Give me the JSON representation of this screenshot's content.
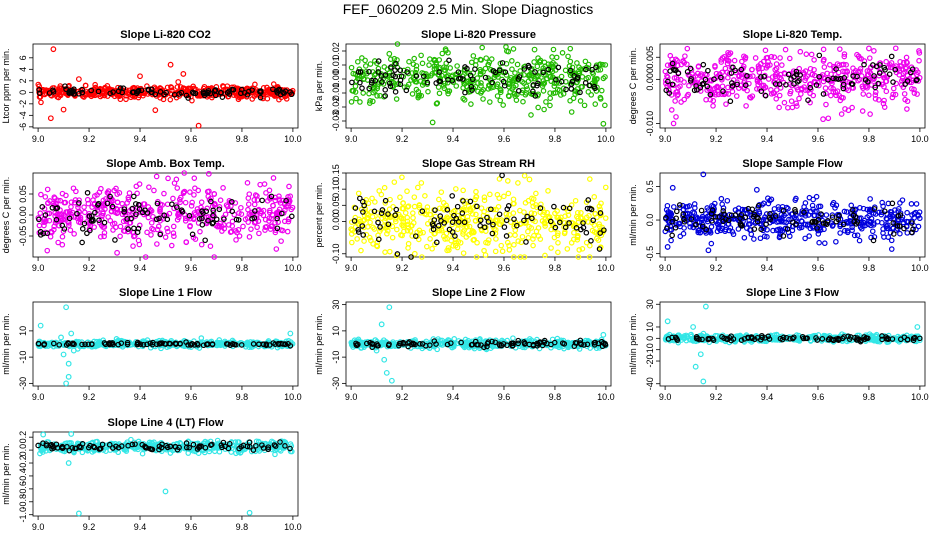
{
  "figure_title": "FEF_060209  2.5 Min. Slope Diagnostics",
  "chart_data": [
    {
      "id": "co2",
      "type": "scatter",
      "title": "Slope Li-820 CO2",
      "ylabel": "Ltcor ppm per min.",
      "color": "#ff0000",
      "xlim": [
        8.98,
        10.02
      ],
      "ylim": [
        -6.2,
        8.4
      ],
      "xticks": [
        "9.0",
        "9.2",
        "9.4",
        "9.6",
        "9.8",
        "10.0"
      ],
      "yticks": [
        "-6",
        "-4",
        "-2",
        "0",
        "2",
        "4",
        "6"
      ],
      "noise": 0.5,
      "spikes": [
        [
          9.06,
          7.5
        ],
        [
          9.52,
          4.8
        ],
        [
          9.57,
          3.2
        ],
        [
          9.63,
          -5.8
        ],
        [
          9.1,
          -3.0
        ],
        [
          9.4,
          2.8
        ],
        [
          9.05,
          -4.5
        ],
        [
          9.16,
          2.3
        ],
        [
          9.46,
          -3.1
        ],
        [
          9.55,
          1.8
        ]
      ],
      "black_noise": 0.35,
      "center": 0.0
    },
    {
      "id": "pressure",
      "type": "scatter",
      "title": "Slope Li-820 Pressure",
      "ylabel": "kPa per min.",
      "color": "#22bb00",
      "xlim": [
        8.98,
        10.02
      ],
      "ylim": [
        -0.035,
        0.025
      ],
      "xticks": [
        "9.0",
        "9.2",
        "9.4",
        "9.6",
        "9.8",
        "10.0"
      ],
      "yticks": [
        "-0.03",
        "-0.02",
        "-0.01",
        "0.00",
        "0.01",
        "0.02"
      ],
      "noise": 0.009,
      "spikes": [
        [
          9.32,
          -0.031
        ],
        [
          9.99,
          -0.032
        ],
        [
          9.15,
          0.018
        ],
        [
          9.72,
          0.021
        ]
      ],
      "black_noise": 0.006,
      "center": 0.0
    },
    {
      "id": "temp",
      "type": "scatter",
      "title": "Slope Li-820 Temp.",
      "ylabel": "degrees C per min.",
      "color": "#ee00ee",
      "xlim": [
        8.98,
        10.02
      ],
      "ylim": [
        -0.011,
        0.008
      ],
      "xticks": [
        "9.0",
        "9.2",
        "9.4",
        "9.6",
        "9.8",
        "10.0"
      ],
      "yticks": [
        "-0.010",
        "0.000",
        "0.005"
      ],
      "noise": 0.003,
      "spikes": [
        [
          9.62,
          -0.009
        ],
        [
          9.8,
          0.007
        ]
      ],
      "black_noise": 0.002,
      "center": 0.0
    },
    {
      "id": "ambbox",
      "type": "scatter",
      "title": "Slope Amb. Box Temp.",
      "ylabel": "degrees C per min.",
      "color": "#ee00ee",
      "xlim": [
        8.98,
        10.02
      ],
      "ylim": [
        -0.1,
        0.1
      ],
      "xticks": [
        "9.0",
        "9.2",
        "9.4",
        "9.6",
        "9.8",
        "10.0"
      ],
      "yticks": [
        "-0.05",
        "0.00",
        "0.05"
      ],
      "noise": 0.035,
      "spikes": [
        [
          9.67,
          0.098
        ],
        [
          9.31,
          -0.09
        ]
      ],
      "black_noise": 0.025,
      "center": 0.0
    },
    {
      "id": "rh",
      "type": "scatter",
      "title": "Slope Gas Stream RH",
      "ylabel": "percent per min.",
      "color": "#ffff00",
      "xlim": [
        8.98,
        10.02
      ],
      "ylim": [
        -0.11,
        0.15
      ],
      "xticks": [
        "9.0",
        "9.2",
        "9.4",
        "9.6",
        "9.8",
        "10.0"
      ],
      "yticks": [
        "-0.10",
        "0.00",
        "0.05",
        "0.10",
        "0.15"
      ],
      "noise": 0.05,
      "spikes": [
        [
          9.7,
          0.13
        ],
        [
          9.25,
          -0.1
        ]
      ],
      "black_noise": 0.04,
      "center": 0.0
    },
    {
      "id": "sample",
      "type": "scatter",
      "title": "Slope Sample Flow",
      "ylabel": "ml/min per min.",
      "color": "#0000dd",
      "xlim": [
        8.98,
        10.02
      ],
      "ylim": [
        -0.55,
        0.7
      ],
      "xticks": [
        "9.0",
        "9.2",
        "9.4",
        "9.6",
        "9.8",
        "10.0"
      ],
      "yticks": [
        "-0.5",
        "0.0",
        "0.5"
      ],
      "noise": 0.14,
      "spikes": [
        [
          9.15,
          0.68
        ],
        [
          9.03,
          0.48
        ],
        [
          9.17,
          -0.45
        ],
        [
          9.36,
          0.45
        ],
        [
          9.01,
          -0.4
        ]
      ],
      "black_noise": 0.1,
      "center": 0.0
    },
    {
      "id": "line1",
      "type": "scatter",
      "title": "Slope Line 1 Flow",
      "ylabel": "ml/min per min.",
      "color": "#33e6e6",
      "xlim": [
        8.98,
        10.02
      ],
      "ylim": [
        -32,
        32
      ],
      "xticks": [
        "9.0",
        "9.2",
        "9.4",
        "9.6",
        "9.8",
        "10.0"
      ],
      "yticks": [
        "-30",
        "-10",
        "10"
      ],
      "noise": 1.2,
      "spikes": [
        [
          9.11,
          -30
        ],
        [
          9.12,
          -25
        ],
        [
          9.11,
          28
        ],
        [
          9.1,
          -8
        ],
        [
          9.13,
          8
        ],
        [
          9.09,
          5
        ],
        [
          9.12,
          -15
        ],
        [
          9.14,
          -5
        ],
        [
          9.01,
          14
        ],
        [
          9.99,
          8
        ]
      ],
      "black_noise": 0.6,
      "center": 0.0
    },
    {
      "id": "line2",
      "type": "scatter",
      "title": "Slope Line 2 Flow",
      "ylabel": "ml/min per min.",
      "color": "#33e6e6",
      "xlim": [
        8.98,
        10.02
      ],
      "ylim": [
        -32,
        32
      ],
      "xticks": [
        "9.0",
        "9.2",
        "9.4",
        "9.6",
        "9.8",
        "10.0"
      ],
      "yticks": [
        "-30",
        "-10",
        "10",
        "30"
      ],
      "noise": 1.5,
      "spikes": [
        [
          9.15,
          28
        ],
        [
          9.14,
          -22
        ],
        [
          9.16,
          -28
        ],
        [
          9.13,
          -12
        ],
        [
          9.12,
          15
        ],
        [
          9.99,
          7
        ],
        [
          9.1,
          -5
        ]
      ],
      "black_noise": 1.0,
      "center": 0.0
    },
    {
      "id": "line3",
      "type": "scatter",
      "title": "Slope Line 3 Flow",
      "ylabel": "ml/min per min.",
      "color": "#33e6e6",
      "xlim": [
        8.98,
        10.02
      ],
      "ylim": [
        -42,
        32
      ],
      "xticks": [
        "9.0",
        "9.2",
        "9.4",
        "9.6",
        "9.8",
        "10.0"
      ],
      "yticks": [
        "-40",
        "-20",
        "-10",
        "0",
        "10",
        "30"
      ],
      "noise": 1.5,
      "spikes": [
        [
          9.16,
          28
        ],
        [
          9.15,
          -38
        ],
        [
          9.12,
          -25
        ],
        [
          9.14,
          -14
        ],
        [
          9.11,
          10
        ],
        [
          9.01,
          15
        ],
        [
          9.99,
          10
        ]
      ],
      "black_noise": 1.0,
      "center": 0.0
    },
    {
      "id": "line4",
      "type": "scatter",
      "title": "Slope Line 4 (LT) Flow",
      "ylabel": "ml/min per min.",
      "color": "#33e6e6",
      "xlim": [
        8.98,
        10.02
      ],
      "ylim": [
        -1.02,
        0.28
      ],
      "xticks": [
        "9.0",
        "9.2",
        "9.4",
        "9.6",
        "9.8",
        "10.0"
      ],
      "yticks": [
        "-1.0",
        "-0.8",
        "-0.6",
        "-0.4",
        "-0.2",
        "0.0",
        "0.2"
      ],
      "noise": 0.04,
      "spikes": [
        [
          9.02,
          0.24
        ],
        [
          9.13,
          0.25
        ],
        [
          9.16,
          -0.98
        ],
        [
          9.5,
          -0.64
        ],
        [
          9.83,
          -0.97
        ],
        [
          9.12,
          -0.2
        ]
      ],
      "black_noise": 0.03,
      "center": 0.05
    }
  ]
}
